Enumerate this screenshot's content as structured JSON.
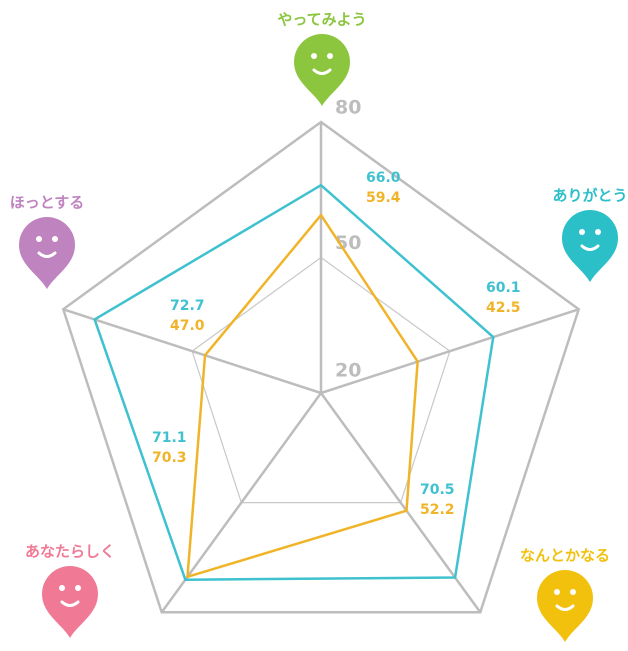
{
  "chart_data": {
    "type": "radar",
    "categories": [
      "やってみよう",
      "ありがとう",
      "なんとかなる",
      "あなたらしく",
      "ほっとする"
    ],
    "category_colors": [
      "#8cc63f",
      "#2bbfc8",
      "#f2c10e",
      "#f07a95",
      "#bf83c0"
    ],
    "series": [
      {
        "color": "#3fc1d0",
        "values": [
          66.0,
          60.1,
          70.5,
          71.1,
          72.7
        ],
        "value_labels": [
          "66.0",
          "60.1",
          "70.5",
          "71.1",
          "72.7"
        ]
      },
      {
        "color": "#f0b429",
        "values": [
          59.4,
          42.5,
          52.2,
          70.3,
          47.0
        ],
        "value_labels": [
          "59.4",
          "42.5",
          "52.2",
          "70.3",
          "47.0"
        ]
      }
    ],
    "ylim": [
      20,
      80
    ],
    "yticks": [
      20,
      50,
      80
    ]
  }
}
